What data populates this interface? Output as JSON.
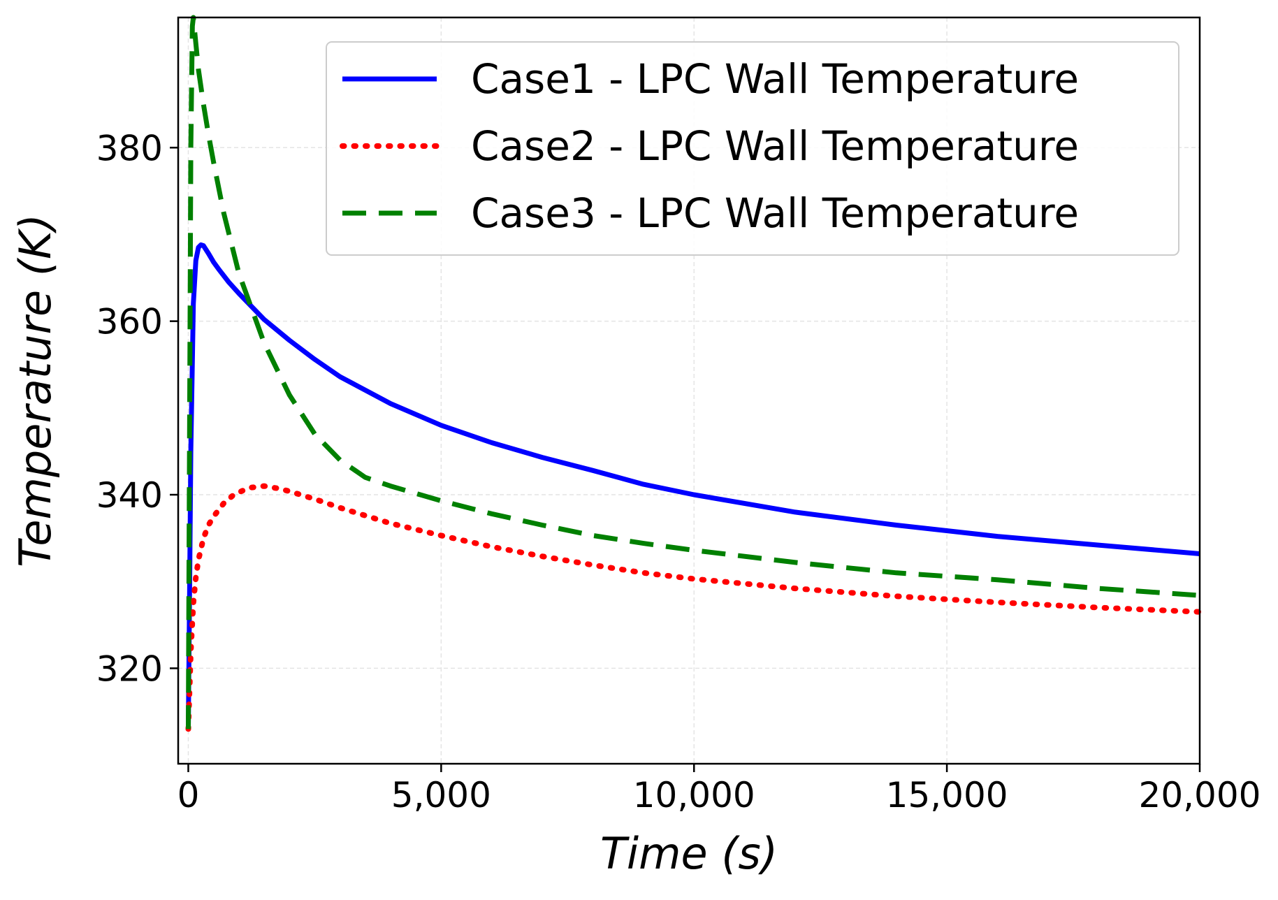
{
  "chart_data": {
    "type": "line",
    "title": "",
    "xlabel": "Time (s)",
    "ylabel": "Temperature (K)",
    "xlim": [
      -200,
      20000
    ],
    "ylim": [
      309,
      395
    ],
    "xticks": [
      0,
      5000,
      10000,
      15000,
      20000
    ],
    "xtick_labels": [
      "0",
      "5,000",
      "10,000",
      "15,000",
      "20,000"
    ],
    "yticks": [
      320,
      340,
      360,
      380
    ],
    "ytick_labels": [
      "320",
      "340",
      "360",
      "380"
    ],
    "grid": true,
    "legend_position": "upper-right",
    "series": [
      {
        "name": "Case1 - LPC Wall Temperature",
        "color": "#0000ff",
        "style": "solid",
        "x": [
          0,
          20,
          50,
          100,
          150,
          200,
          250,
          300,
          400,
          500,
          600,
          800,
          1000,
          1500,
          2000,
          2500,
          3000,
          4000,
          5000,
          6000,
          7000,
          8000,
          9000,
          10000,
          12000,
          14000,
          16000,
          18000,
          20000
        ],
        "y": [
          313,
          325,
          345,
          362,
          367,
          368.5,
          368.8,
          368.7,
          367.8,
          366.8,
          366,
          364.5,
          363.2,
          360.2,
          357.8,
          355.6,
          353.6,
          350.5,
          348,
          346,
          344.3,
          342.8,
          341.2,
          340,
          338,
          336.5,
          335.2,
          334.2,
          333.2
        ]
      },
      {
        "name": "Case2 - LPC Wall Temperature",
        "color": "#ff0000",
        "style": "dotted",
        "x": [
          0,
          50,
          100,
          150,
          200,
          300,
          400,
          500,
          700,
          900,
          1200,
          1500,
          1800,
          2000,
          2500,
          3000,
          4000,
          5000,
          6000,
          7000,
          8000,
          9000,
          10000,
          12000,
          14000,
          16000,
          18000,
          20000
        ],
        "y": [
          313,
          322,
          327.5,
          330.5,
          332.5,
          335,
          336.5,
          337.5,
          339,
          340,
          340.8,
          341,
          340.7,
          340.4,
          339.5,
          338.5,
          336.7,
          335.3,
          334,
          332.9,
          331.9,
          331,
          330.3,
          329.2,
          328.3,
          327.6,
          327,
          326.5
        ]
      },
      {
        "name": "Case3 - LPC Wall Temperature",
        "color": "#008000",
        "style": "dashed",
        "x": [
          0,
          20,
          50,
          80,
          100,
          150,
          200,
          300,
          400,
          500,
          700,
          1000,
          1500,
          2000,
          2500,
          3000,
          3500,
          4000,
          5000,
          6000,
          7000,
          8000,
          9000,
          10000,
          12000,
          14000,
          16000,
          18000,
          20000
        ],
        "y": [
          313,
          340,
          380,
          394,
          395,
          392,
          389,
          385,
          381.5,
          378.3,
          372.5,
          365.5,
          357.5,
          351.5,
          347,
          344,
          342,
          341,
          339.3,
          337.8,
          336.5,
          335.3,
          334.4,
          333.6,
          332.2,
          331,
          330.2,
          329.2,
          328.4
        ]
      }
    ]
  }
}
